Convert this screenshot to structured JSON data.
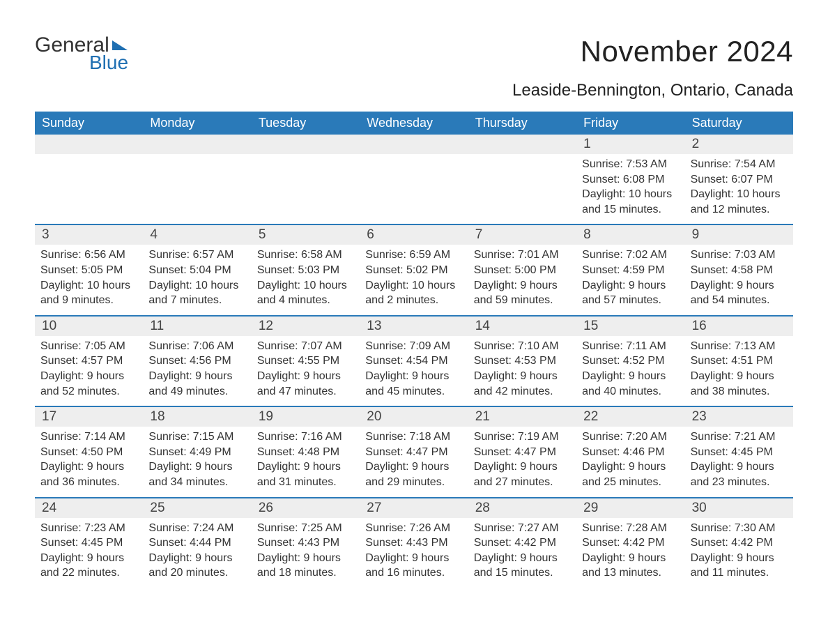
{
  "logo": {
    "word1": "General",
    "word2": "Blue"
  },
  "title": "November 2024",
  "location": "Leaside-Bennington, Ontario, Canada",
  "colors": {
    "header_bg": "#2a7ab9",
    "header_text": "#ffffff",
    "rule": "#2a7ab9",
    "daynum_bg": "#eeeeee",
    "text": "#333333",
    "logo_blue": "#1f6fb2"
  },
  "dows": [
    "Sunday",
    "Monday",
    "Tuesday",
    "Wednesday",
    "Thursday",
    "Friday",
    "Saturday"
  ],
  "weeks": [
    [
      {
        "blank": true
      },
      {
        "blank": true
      },
      {
        "blank": true
      },
      {
        "blank": true
      },
      {
        "blank": true
      },
      {
        "num": "1",
        "sunrise": "7:53 AM",
        "sunset": "6:08 PM",
        "daylight": "10 hours and 15 minutes."
      },
      {
        "num": "2",
        "sunrise": "7:54 AM",
        "sunset": "6:07 PM",
        "daylight": "10 hours and 12 minutes."
      }
    ],
    [
      {
        "num": "3",
        "sunrise": "6:56 AM",
        "sunset": "5:05 PM",
        "daylight": "10 hours and 9 minutes."
      },
      {
        "num": "4",
        "sunrise": "6:57 AM",
        "sunset": "5:04 PM",
        "daylight": "10 hours and 7 minutes."
      },
      {
        "num": "5",
        "sunrise": "6:58 AM",
        "sunset": "5:03 PM",
        "daylight": "10 hours and 4 minutes."
      },
      {
        "num": "6",
        "sunrise": "6:59 AM",
        "sunset": "5:02 PM",
        "daylight": "10 hours and 2 minutes."
      },
      {
        "num": "7",
        "sunrise": "7:01 AM",
        "sunset": "5:00 PM",
        "daylight": "9 hours and 59 minutes."
      },
      {
        "num": "8",
        "sunrise": "7:02 AM",
        "sunset": "4:59 PM",
        "daylight": "9 hours and 57 minutes."
      },
      {
        "num": "9",
        "sunrise": "7:03 AM",
        "sunset": "4:58 PM",
        "daylight": "9 hours and 54 minutes."
      }
    ],
    [
      {
        "num": "10",
        "sunrise": "7:05 AM",
        "sunset": "4:57 PM",
        "daylight": "9 hours and 52 minutes."
      },
      {
        "num": "11",
        "sunrise": "7:06 AM",
        "sunset": "4:56 PM",
        "daylight": "9 hours and 49 minutes."
      },
      {
        "num": "12",
        "sunrise": "7:07 AM",
        "sunset": "4:55 PM",
        "daylight": "9 hours and 47 minutes."
      },
      {
        "num": "13",
        "sunrise": "7:09 AM",
        "sunset": "4:54 PM",
        "daylight": "9 hours and 45 minutes."
      },
      {
        "num": "14",
        "sunrise": "7:10 AM",
        "sunset": "4:53 PM",
        "daylight": "9 hours and 42 minutes."
      },
      {
        "num": "15",
        "sunrise": "7:11 AM",
        "sunset": "4:52 PM",
        "daylight": "9 hours and 40 minutes."
      },
      {
        "num": "16",
        "sunrise": "7:13 AM",
        "sunset": "4:51 PM",
        "daylight": "9 hours and 38 minutes."
      }
    ],
    [
      {
        "num": "17",
        "sunrise": "7:14 AM",
        "sunset": "4:50 PM",
        "daylight": "9 hours and 36 minutes."
      },
      {
        "num": "18",
        "sunrise": "7:15 AM",
        "sunset": "4:49 PM",
        "daylight": "9 hours and 34 minutes."
      },
      {
        "num": "19",
        "sunrise": "7:16 AM",
        "sunset": "4:48 PM",
        "daylight": "9 hours and 31 minutes."
      },
      {
        "num": "20",
        "sunrise": "7:18 AM",
        "sunset": "4:47 PM",
        "daylight": "9 hours and 29 minutes."
      },
      {
        "num": "21",
        "sunrise": "7:19 AM",
        "sunset": "4:47 PM",
        "daylight": "9 hours and 27 minutes."
      },
      {
        "num": "22",
        "sunrise": "7:20 AM",
        "sunset": "4:46 PM",
        "daylight": "9 hours and 25 minutes."
      },
      {
        "num": "23",
        "sunrise": "7:21 AM",
        "sunset": "4:45 PM",
        "daylight": "9 hours and 23 minutes."
      }
    ],
    [
      {
        "num": "24",
        "sunrise": "7:23 AM",
        "sunset": "4:45 PM",
        "daylight": "9 hours and 22 minutes."
      },
      {
        "num": "25",
        "sunrise": "7:24 AM",
        "sunset": "4:44 PM",
        "daylight": "9 hours and 20 minutes."
      },
      {
        "num": "26",
        "sunrise": "7:25 AM",
        "sunset": "4:43 PM",
        "daylight": "9 hours and 18 minutes."
      },
      {
        "num": "27",
        "sunrise": "7:26 AM",
        "sunset": "4:43 PM",
        "daylight": "9 hours and 16 minutes."
      },
      {
        "num": "28",
        "sunrise": "7:27 AM",
        "sunset": "4:42 PM",
        "daylight": "9 hours and 15 minutes."
      },
      {
        "num": "29",
        "sunrise": "7:28 AM",
        "sunset": "4:42 PM",
        "daylight": "9 hours and 13 minutes."
      },
      {
        "num": "30",
        "sunrise": "7:30 AM",
        "sunset": "4:42 PM",
        "daylight": "9 hours and 11 minutes."
      }
    ]
  ],
  "labels": {
    "sunrise": "Sunrise: ",
    "sunset": "Sunset: ",
    "daylight": "Daylight: "
  }
}
